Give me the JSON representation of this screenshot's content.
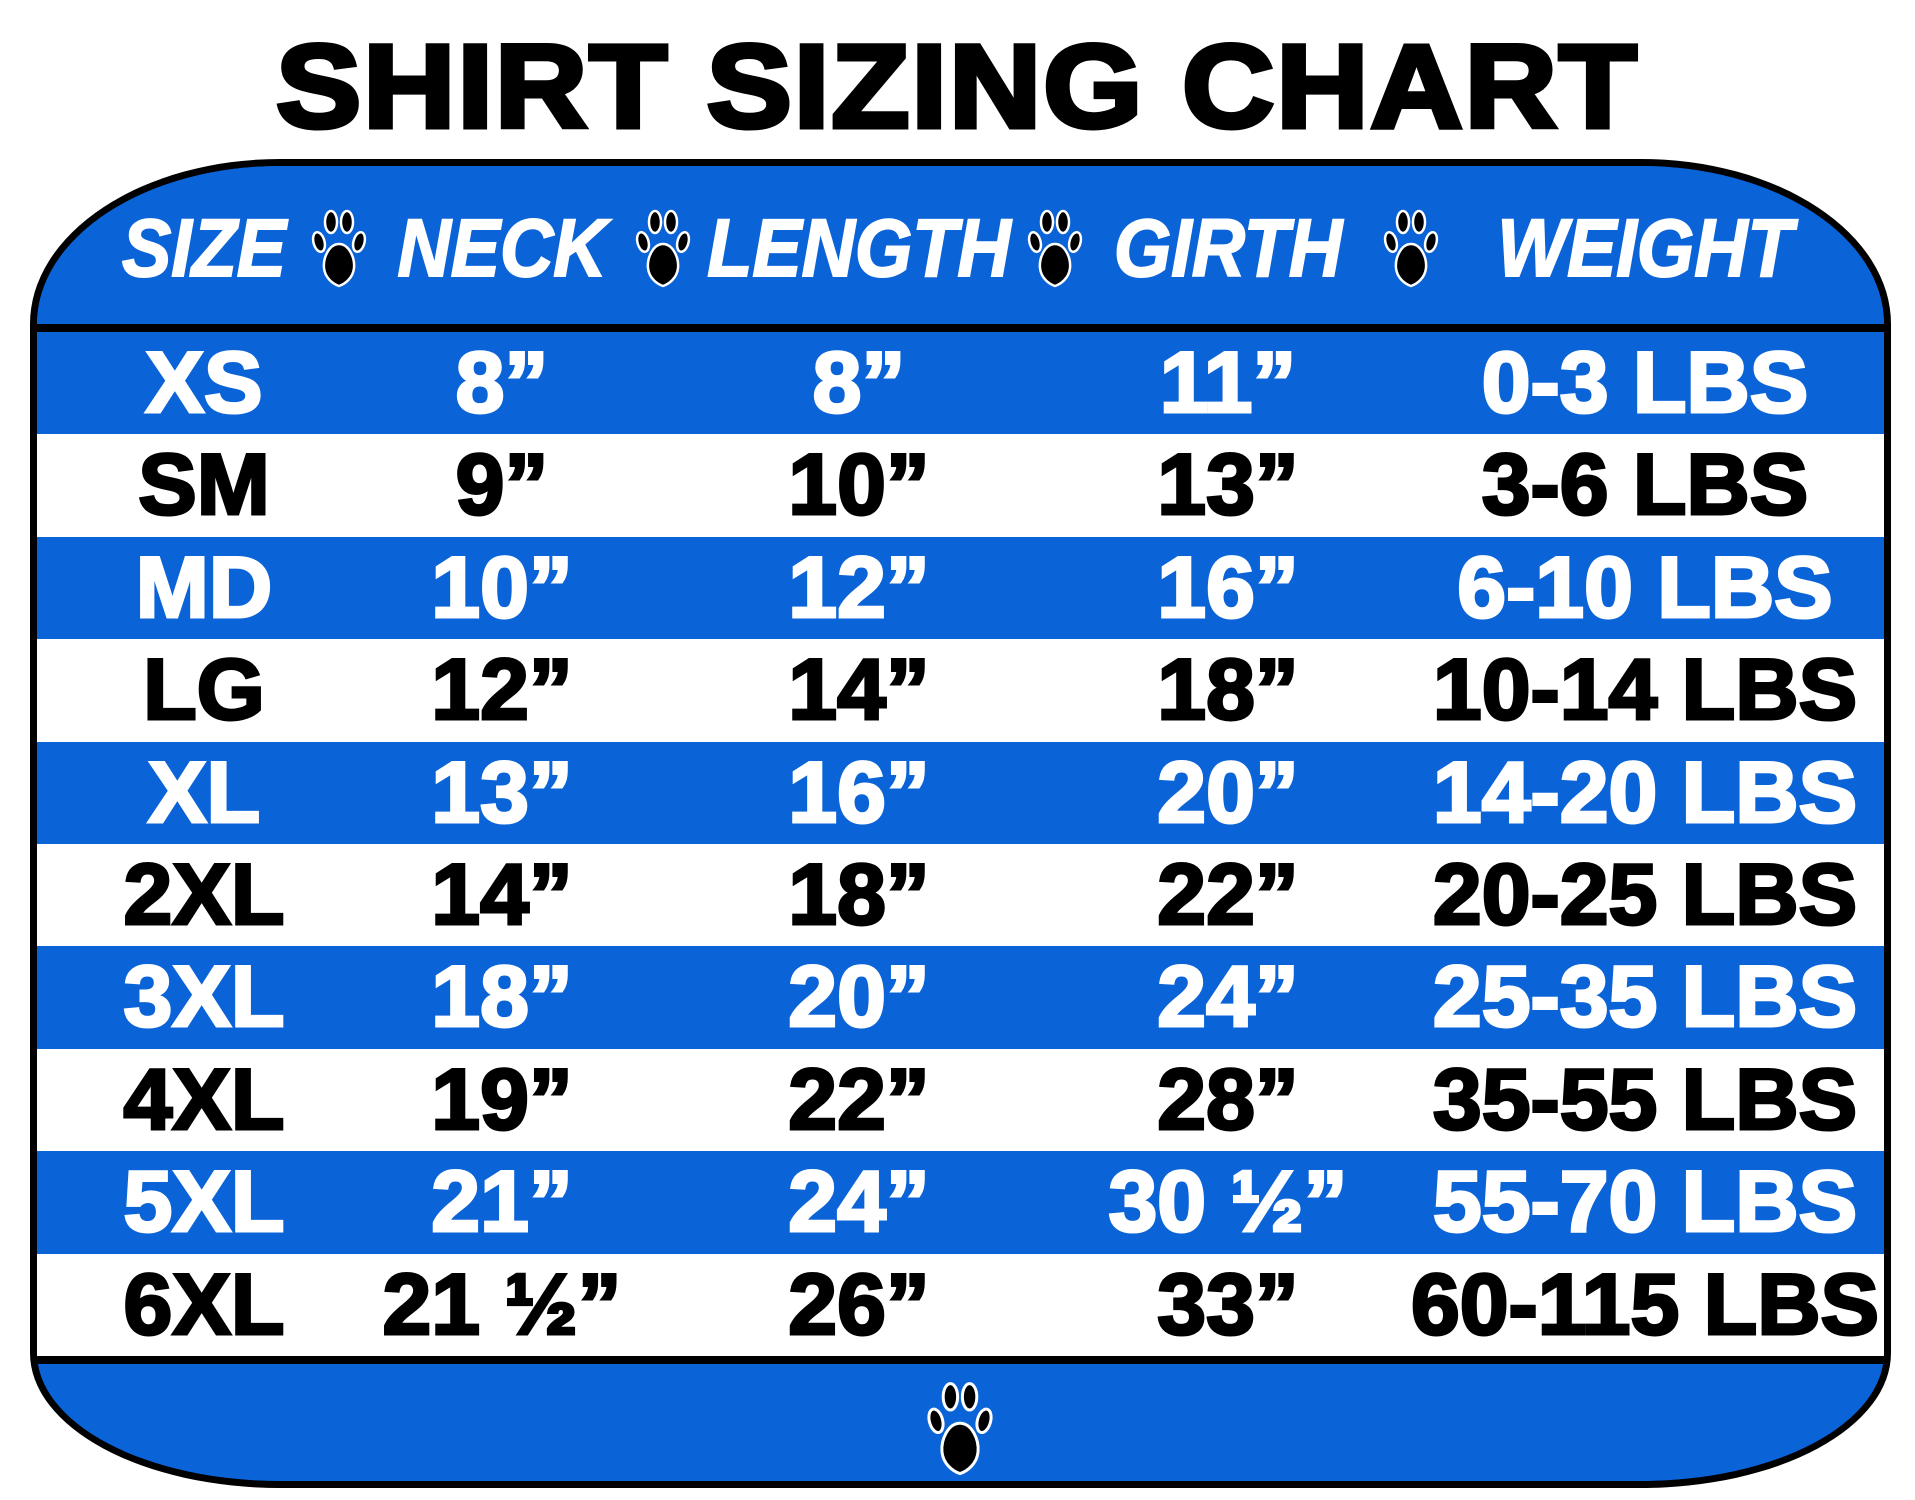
{
  "title": "SHIRT SIZING CHART",
  "colors": {
    "blue": "#0b63d8",
    "white": "#ffffff",
    "black": "#000000"
  },
  "header": {
    "columns": [
      "SIZE",
      "NECK",
      "LENGTH",
      "GIRTH",
      "WEIGHT"
    ],
    "separator_icon": "paw-print-icon"
  },
  "rows": [
    {
      "size": "XS",
      "neck": "8”",
      "length": "8”",
      "girth": "11”",
      "weight": "0-3 LBS"
    },
    {
      "size": "SM",
      "neck": "9”",
      "length": "10”",
      "girth": "13”",
      "weight": "3-6 LBS"
    },
    {
      "size": "MD",
      "neck": "10”",
      "length": "12”",
      "girth": "16”",
      "weight": "6-10 LBS"
    },
    {
      "size": "LG",
      "neck": "12”",
      "length": "14”",
      "girth": "18”",
      "weight": "10-14 LBS"
    },
    {
      "size": "XL",
      "neck": "13”",
      "length": "16”",
      "girth": "20”",
      "weight": "14-20 LBS"
    },
    {
      "size": "2XL",
      "neck": "14”",
      "length": "18”",
      "girth": "22”",
      "weight": "20-25 LBS"
    },
    {
      "size": "3XL",
      "neck": "18”",
      "length": "20”",
      "girth": "24”",
      "weight": "25-35 LBS"
    },
    {
      "size": "4XL",
      "neck": "19”",
      "length": "22”",
      "girth": "28”",
      "weight": "35-55 LBS"
    },
    {
      "size": "5XL",
      "neck": "21”",
      "length": "24”",
      "girth": "30 ½”",
      "weight": "55-70 LBS"
    },
    {
      "size": "6XL",
      "neck": "21 ½”",
      "length": "26”",
      "girth": "33”",
      "weight": "60-115 LBS"
    }
  ],
  "footer": {
    "icon": "paw-print-icon"
  }
}
